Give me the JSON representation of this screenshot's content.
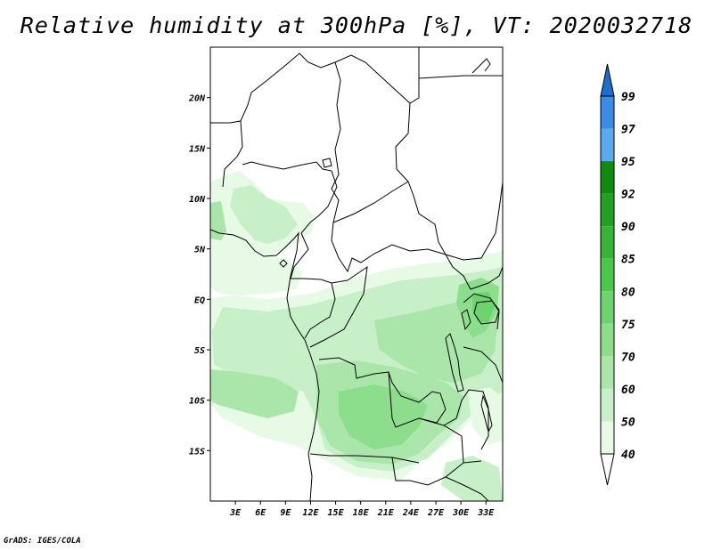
{
  "title": "Relative humidity at 300hPa [%], VT: 2020032718",
  "credit": "GrADS: IGES/COLA",
  "map": {
    "lon_range": [
      0,
      35
    ],
    "lat_range": [
      -20,
      25
    ],
    "lat_labels": [
      {
        "lat": 20,
        "text": "20N"
      },
      {
        "lat": 15,
        "text": "15N"
      },
      {
        "lat": 10,
        "text": "10N"
      },
      {
        "lat": 5,
        "text": "5N"
      },
      {
        "lat": 0,
        "text": "EQ"
      },
      {
        "lat": -5,
        "text": "5S"
      },
      {
        "lat": -10,
        "text": "10S"
      },
      {
        "lat": -15,
        "text": "15S"
      }
    ],
    "lon_labels": [
      {
        "lon": 3,
        "text": "3E"
      },
      {
        "lon": 6,
        "text": "6E"
      },
      {
        "lon": 9,
        "text": "9E"
      },
      {
        "lon": 12,
        "text": "12E"
      },
      {
        "lon": 15,
        "text": "15E"
      },
      {
        "lon": 18,
        "text": "18E"
      },
      {
        "lon": 21,
        "text": "21E"
      },
      {
        "lon": 24,
        "text": "24E"
      },
      {
        "lon": 27,
        "text": "27E"
      },
      {
        "lon": 30,
        "text": "30E"
      },
      {
        "lon": 33,
        "text": "33E"
      }
    ]
  },
  "colorbar": {
    "levels": [
      "99",
      "97",
      "95",
      "92",
      "90",
      "85",
      "80",
      "75",
      "70",
      "60",
      "50",
      "40"
    ],
    "colors": [
      "#1e6ec8",
      "#3c8ce6",
      "#5aaaf0",
      "#0f8c0f",
      "#23a023",
      "#37b437",
      "#4bc84b",
      "#6ed26e",
      "#8cde8c",
      "#aae6aa",
      "#c8f0c8",
      "#e6fae6",
      "#ffffff"
    ]
  }
}
